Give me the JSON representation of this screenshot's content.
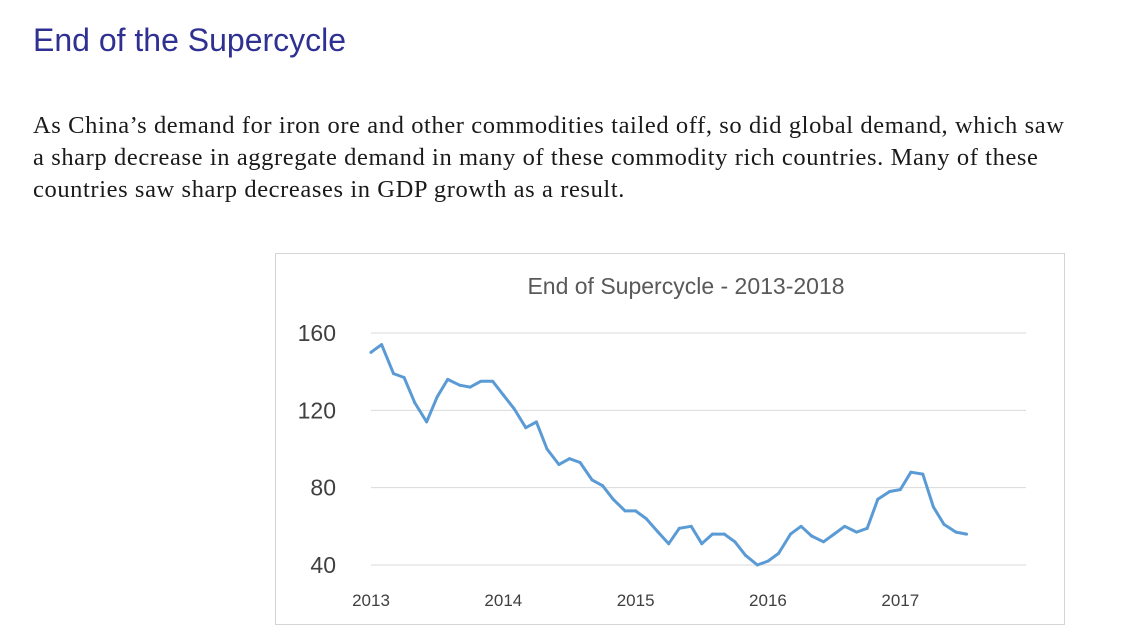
{
  "slide": {
    "title": "End of the Supercycle",
    "paragraph": "As China’s demand for iron ore and other commodities tailed off, so did global demand, which saw a sharp decrease in aggregate demand in many of these commodity rich countries. Many of these countries saw sharp decreases in GDP growth as a result."
  },
  "colors": {
    "title": "#2e3192",
    "line": "#5b9bd5",
    "grid": "#d9d9d9"
  },
  "chart_data": {
    "type": "line",
    "title": "End of Supercycle - 2013-2018",
    "xlabel": "",
    "ylabel": "",
    "ylim": [
      40,
      160
    ],
    "yticks": [
      40,
      80,
      120,
      160
    ],
    "xlim": [
      2013,
      2017.95
    ],
    "xticks": [
      2013,
      2014,
      2015,
      2016,
      2017
    ],
    "grid": true,
    "legend": "none",
    "series": [
      {
        "x": [
          2013.0,
          2013.08,
          2013.17,
          2013.25,
          2013.33,
          2013.42,
          2013.5,
          2013.58,
          2013.67,
          2013.75,
          2013.83,
          2013.92,
          2014.0,
          2014.08,
          2014.17,
          2014.25,
          2014.33,
          2014.42,
          2014.5,
          2014.58,
          2014.67,
          2014.75,
          2014.83,
          2014.92,
          2015.0,
          2015.08,
          2015.17,
          2015.25,
          2015.33,
          2015.42,
          2015.5,
          2015.58,
          2015.67,
          2015.75,
          2015.83,
          2015.92,
          2016.0,
          2016.08,
          2016.17,
          2016.25,
          2016.33,
          2016.42,
          2016.5,
          2016.58,
          2016.67,
          2016.75,
          2016.83,
          2016.92,
          2017.0,
          2017.08,
          2017.17,
          2017.25,
          2017.33,
          2017.42,
          2017.5
        ],
        "values": [
          150,
          154,
          139,
          137,
          124,
          114,
          127,
          136,
          133,
          132,
          135,
          135,
          128,
          121,
          111,
          114,
          100,
          92,
          95,
          93,
          84,
          81,
          74,
          68,
          68,
          64,
          57,
          51,
          59,
          60,
          51,
          56,
          56,
          52,
          45,
          40,
          42,
          46,
          56,
          60,
          55,
          52,
          56,
          60,
          57,
          59,
          74,
          78,
          79,
          88,
          87,
          70,
          61,
          57,
          56
        ]
      }
    ]
  }
}
